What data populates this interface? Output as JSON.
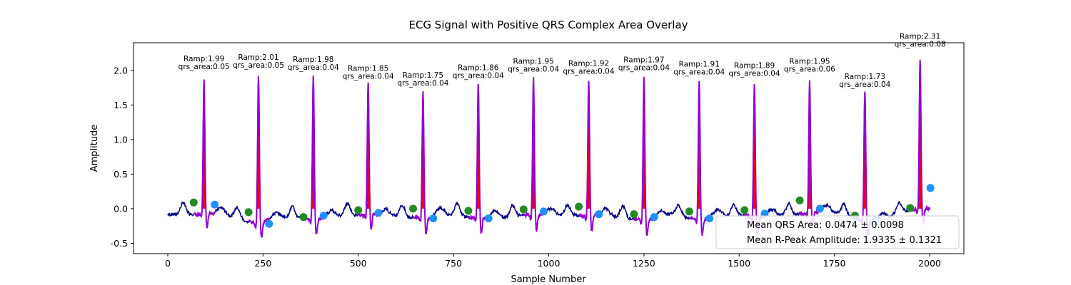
{
  "chart_data": {
    "type": "line",
    "title": "ECG Signal with Positive QRS Complex Area Overlay",
    "xlabel": "Sample Number",
    "ylabel": "Amplitude",
    "xlim": [
      -90,
      2090
    ],
    "ylim": [
      -0.65,
      2.4
    ],
    "xticks": [
      0,
      250,
      500,
      750,
      1000,
      1250,
      1500,
      1750,
      2000
    ],
    "yticks": [
      -0.5,
      0.0,
      0.5,
      1.0,
      1.5,
      2.0
    ],
    "grid": false,
    "legend_position": "lower-right",
    "legend_entries": [
      "Mean QRS Area: 0.0474 ± 0.0098",
      "Mean R-Peak Amplitude: 1.9335 ± 0.1321"
    ],
    "colors": {
      "signal": "#00008b",
      "qrs_segment": "#9400d3",
      "qrs_area_fill": "#ff0000",
      "onset_marker": "#228b22",
      "offset_marker": "#1e90ff"
    },
    "beats": [
      {
        "r_peak_x": 95,
        "r_amp": 1.99,
        "onset_x": 68,
        "onset_y": 0.09,
        "offset_x": 123,
        "offset_y": 0.06,
        "ramp_label": "Ramp:1.99",
        "area_label": "qrs_area:0.05"
      },
      {
        "r_peak_x": 238,
        "r_amp": 2.01,
        "onset_x": 212,
        "onset_y": -0.05,
        "offset_x": 266,
        "offset_y": -0.22,
        "ramp_label": "Ramp:2.01",
        "area_label": "qrs_area:0.05"
      },
      {
        "r_peak_x": 382,
        "r_amp": 1.98,
        "onset_x": 356,
        "onset_y": -0.12,
        "offset_x": 409,
        "offset_y": -0.1,
        "ramp_label": "Ramp:1.98",
        "area_label": "qrs_area:0.04"
      },
      {
        "r_peak_x": 526,
        "r_amp": 1.85,
        "onset_x": 500,
        "onset_y": -0.02,
        "offset_x": 553,
        "offset_y": -0.06,
        "ramp_label": "Ramp:1.85",
        "area_label": "qrs_area:0.04"
      },
      {
        "r_peak_x": 670,
        "r_amp": 1.75,
        "onset_x": 644,
        "onset_y": 0.0,
        "offset_x": 697,
        "offset_y": -0.14,
        "ramp_label": "Ramp:1.75",
        "area_label": "qrs_area:0.04"
      },
      {
        "r_peak_x": 815,
        "r_amp": 1.86,
        "onset_x": 789,
        "onset_y": -0.03,
        "offset_x": 842,
        "offset_y": -0.14,
        "ramp_label": "Ramp:1.86",
        "area_label": "qrs_area:0.04"
      },
      {
        "r_peak_x": 960,
        "r_amp": 1.95,
        "onset_x": 934,
        "onset_y": -0.01,
        "offset_x": 987,
        "offset_y": -0.04,
        "ramp_label": "Ramp:1.95",
        "area_label": "qrs_area:0.04"
      },
      {
        "r_peak_x": 1105,
        "r_amp": 1.92,
        "onset_x": 1079,
        "onset_y": 0.03,
        "offset_x": 1132,
        "offset_y": -0.08,
        "ramp_label": "Ramp:1.92",
        "area_label": "qrs_area:0.04"
      },
      {
        "r_peak_x": 1250,
        "r_amp": 1.97,
        "onset_x": 1224,
        "onset_y": -0.08,
        "offset_x": 1277,
        "offset_y": -0.12,
        "ramp_label": "Ramp:1.97",
        "area_label": "qrs_area:0.04"
      },
      {
        "r_peak_x": 1395,
        "r_amp": 1.91,
        "onset_x": 1369,
        "onset_y": -0.04,
        "offset_x": 1422,
        "offset_y": -0.14,
        "ramp_label": "Ramp:1.91",
        "area_label": "qrs_area:0.04"
      },
      {
        "r_peak_x": 1540,
        "r_amp": 1.89,
        "onset_x": 1514,
        "onset_y": -0.02,
        "offset_x": 1567,
        "offset_y": -0.07,
        "ramp_label": "Ramp:1.89",
        "area_label": "qrs_area:0.04"
      },
      {
        "r_peak_x": 1685,
        "r_amp": 1.95,
        "onset_x": 1659,
        "onset_y": 0.12,
        "offset_x": 1712,
        "offset_y": 0.0,
        "ramp_label": "Ramp:1.95",
        "area_label": "qrs_area:0.06"
      },
      {
        "r_peak_x": 1830,
        "r_amp": 1.73,
        "onset_x": 1804,
        "onset_y": -0.1,
        "offset_x": 1857,
        "offset_y": -0.18,
        "ramp_label": "Ramp:1.73",
        "area_label": "qrs_area:0.04"
      },
      {
        "r_peak_x": 1975,
        "r_amp": 2.31,
        "onset_x": 1949,
        "onset_y": 0.01,
        "offset_x": 2002,
        "offset_y": 0.3,
        "ramp_label": "Ramp:2.31",
        "area_label": "qrs_area:0.08"
      }
    ]
  }
}
